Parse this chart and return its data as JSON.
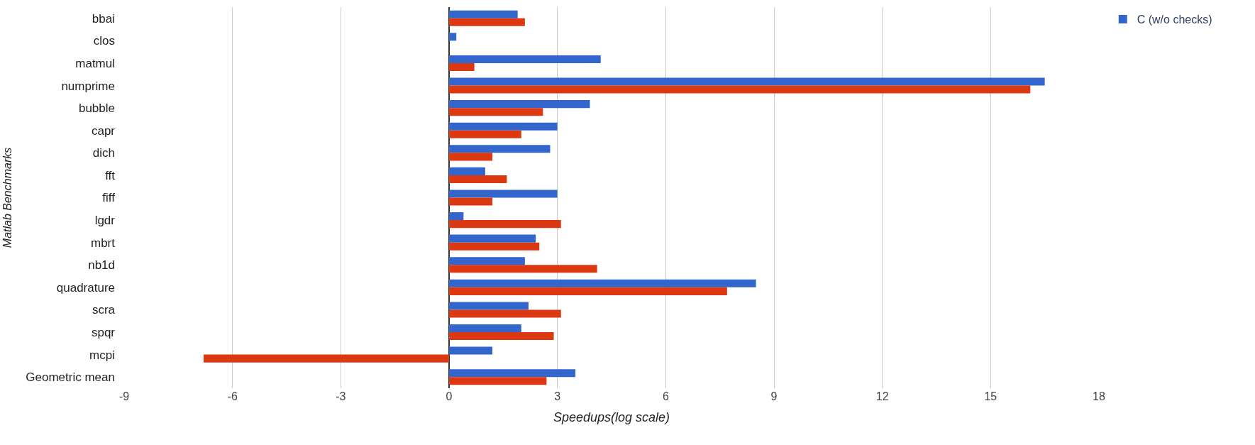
{
  "chart_data": {
    "type": "bar",
    "orientation": "horizontal",
    "xlabel": "Speedups(log scale)",
    "ylabel": "Matlab Benchmarks",
    "categories": [
      "bbai",
      "clos",
      "matmul",
      "numprime",
      "bubble",
      "capr",
      "dich",
      "fft",
      "fiff",
      "lgdr",
      "mbrt",
      "nb1d",
      "quadrature",
      "scra",
      "spqr",
      "mcpi",
      "Geometric mean"
    ],
    "series": [
      {
        "name": "C (w/o checks)",
        "color": "#3366cc",
        "values": [
          1.9,
          0.2,
          4.2,
          16.5,
          3.9,
          3.0,
          2.8,
          1.0,
          3.0,
          0.4,
          2.4,
          2.1,
          8.5,
          2.2,
          2.0,
          1.2,
          3.5
        ]
      },
      {
        "color": "#dc3912",
        "values": [
          2.1,
          null,
          0.7,
          16.1,
          2.6,
          2.0,
          1.2,
          1.6,
          1.2,
          3.1,
          2.5,
          4.1,
          7.7,
          3.1,
          2.9,
          -6.8,
          2.7
        ]
      }
    ],
    "xlim": [
      -9,
      18
    ],
    "xticks": [
      -9,
      -6,
      -3,
      0,
      3,
      6,
      9,
      12,
      15,
      18
    ],
    "grid": "x",
    "legend": "top right"
  }
}
